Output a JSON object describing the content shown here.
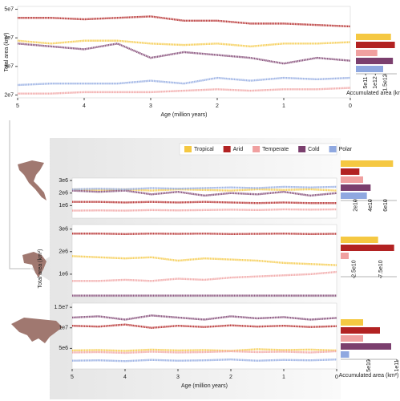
{
  "chart_data": [
    {
      "type": "line",
      "x_label": "Age (million years)",
      "y_label": "Total area (km²)",
      "x": [
        5,
        4.5,
        4,
        3.5,
        3,
        2.5,
        2,
        1.5,
        1,
        0.5,
        0
      ],
      "xlim": [
        5,
        0
      ],
      "xticks": [
        5,
        4,
        3,
        2,
        1,
        0
      ],
      "ylim": [
        19000000,
        51000000
      ],
      "yticks": [
        {
          "value": 20000000,
          "label": "2e7"
        },
        {
          "value": 30000000,
          "label": "3e7"
        },
        {
          "value": 40000000,
          "label": "4e7"
        },
        {
          "value": 50000000,
          "label": "5e7"
        }
      ],
      "series": [
        {
          "color": "#b22222",
          "values": [
            47000000,
            47000000,
            46500000,
            47000000,
            47500000,
            46000000,
            46000000,
            45000000,
            45000000,
            44500000,
            44000000
          ]
        },
        {
          "color": "#f5c842",
          "values": [
            39000000,
            38000000,
            39000000,
            39000000,
            38000000,
            37500000,
            38000000,
            37000000,
            38000000,
            38000000,
            38500000
          ]
        },
        {
          "color": "#7b3f6e",
          "values": [
            38000000,
            37000000,
            36000000,
            38000000,
            33000000,
            35000000,
            34000000,
            33000000,
            31000000,
            33000000,
            32000000
          ]
        },
        {
          "color": "#8fa8e0",
          "values": [
            23500000,
            24000000,
            24000000,
            24000000,
            25000000,
            24000000,
            26000000,
            25000000,
            26000000,
            25500000,
            26000000
          ]
        },
        {
          "color": "#f0a0a0",
          "values": [
            20500000,
            20500000,
            21000000,
            21000000,
            21000000,
            21500000,
            22000000,
            21500000,
            22000000,
            22000000,
            22500000
          ]
        }
      ]
    },
    {
      "type": "bar",
      "x_label": "Accumulated area (km²)",
      "values": [
        1800000000000,
        2000000000000,
        1100000000000,
        1900000000000,
        1400000000000
      ],
      "colors": [
        "#f5c842",
        "#b22222",
        "#f0a0a0",
        "#7b3f6e",
        "#8fa8e0"
      ],
      "xlim": [
        0,
        2100000000000
      ],
      "xticks": [
        {
          "value": 500000000000,
          "label": "5e11"
        },
        {
          "value": 1000000000000,
          "label": "1e12"
        },
        {
          "value": 1500000000000,
          "label": "1.5e12"
        }
      ]
    },
    {
      "type": "line",
      "x": [
        5,
        4.5,
        4,
        3.5,
        3,
        2.5,
        2,
        1.5,
        1,
        0.5,
        0
      ],
      "xlim": [
        5,
        0
      ],
      "ylim": [
        0,
        3200000
      ],
      "yticks": [
        {
          "value": 1000000,
          "label": "1e6"
        },
        {
          "value": 2000000,
          "label": "2e6"
        },
        {
          "value": 3000000,
          "label": "3e6"
        }
      ],
      "series": [
        {
          "name": "Tropical",
          "color": "#f5c842",
          "values": [
            2300000,
            2250000,
            2300000,
            2200000,
            2300000,
            2250000,
            2200000,
            2300000,
            2250000,
            2300000,
            2200000
          ]
        },
        {
          "name": "Arid",
          "color": "#b22222",
          "values": [
            1300000,
            1300000,
            1250000,
            1300000,
            1250000,
            1300000,
            1250000,
            1200000,
            1250000,
            1200000,
            1200000
          ]
        },
        {
          "name": "Temperate",
          "color": "#f0a0a0",
          "values": [
            600000,
            620000,
            600000,
            650000,
            620000,
            650000,
            680000,
            650000,
            700000,
            680000,
            700000
          ]
        },
        {
          "name": "Cold",
          "color": "#7b3f6e",
          "values": [
            2200000,
            2100000,
            2200000,
            1900000,
            2100000,
            1800000,
            2000000,
            1900000,
            2100000,
            1800000,
            2000000
          ]
        },
        {
          "name": "Polar",
          "color": "#8fa8e0",
          "values": [
            2300000,
            2350000,
            2300000,
            2400000,
            2350000,
            2400000,
            2450000,
            2400000,
            2500000,
            2450000,
            2500000
          ]
        }
      ]
    },
    {
      "type": "bar",
      "values": [
        70000000000,
        25000000000,
        30000000000,
        40000000000,
        35000000000
      ],
      "colors": [
        "#f5c842",
        "#b22222",
        "#f0a0a0",
        "#7b3f6e",
        "#8fa8e0"
      ],
      "xlim": [
        0,
        75000000000
      ],
      "xticks": [
        {
          "value": 20000000000,
          "label": "2e10"
        },
        {
          "value": 40000000000,
          "label": "4e10"
        },
        {
          "value": 60000000000,
          "label": "6e10"
        }
      ]
    },
    {
      "type": "line",
      "y_label": "Total area (km²)",
      "x": [
        5,
        4.5,
        4,
        3.5,
        3,
        2.5,
        2,
        1.5,
        1,
        0.5,
        0
      ],
      "xlim": [
        5,
        0
      ],
      "ylim": [
        0,
        3200000
      ],
      "yticks": [
        {
          "value": 1000000,
          "label": "1e6"
        },
        {
          "value": 2000000,
          "label": "2e6"
        },
        {
          "value": 3000000,
          "label": "3e6"
        }
      ],
      "series": [
        {
          "color": "#b22222",
          "values": [
            2800000,
            2800000,
            2780000,
            2800000,
            2790000,
            2800000,
            2780000,
            2790000,
            2800000,
            2780000,
            2790000
          ]
        },
        {
          "color": "#f5c842",
          "values": [
            1800000,
            1750000,
            1700000,
            1750000,
            1600000,
            1700000,
            1650000,
            1600000,
            1500000,
            1450000,
            1400000
          ]
        },
        {
          "color": "#f0a0a0",
          "values": [
            700000,
            700000,
            750000,
            700000,
            800000,
            750000,
            850000,
            900000,
            950000,
            1000000,
            1100000
          ]
        },
        {
          "color": "#7b3f6e",
          "values": [
            50000,
            50000,
            50000,
            50000,
            50000,
            50000,
            50000,
            50000,
            50000,
            50000,
            50000
          ]
        }
      ]
    },
    {
      "type": "bar",
      "values": [
        70000000000,
        100000000000,
        15000000000
      ],
      "colors": [
        "#f5c842",
        "#b22222",
        "#f0a0a0"
      ],
      "xlim": [
        0,
        105000000000
      ],
      "xticks": [
        {
          "value": 25000000000,
          "label": "2.5e10"
        },
        {
          "value": 75000000000,
          "label": "7.5e10"
        }
      ]
    },
    {
      "type": "line",
      "x_label": "Age (million years)",
      "x": [
        5,
        4.5,
        4,
        3.5,
        3,
        2.5,
        2,
        1.5,
        1,
        0.5,
        0
      ],
      "xlim": [
        5,
        0
      ],
      "xticks": [
        5,
        4,
        3,
        2,
        1,
        0
      ],
      "ylim": [
        0,
        16000000
      ],
      "yticks": [
        {
          "value": 5000000,
          "label": "5e6"
        },
        {
          "value": 10000000,
          "label": "1e7"
        },
        {
          "value": 15000000,
          "label": "1.5e7"
        }
      ],
      "series": [
        {
          "color": "#7b3f6e",
          "values": [
            12500000,
            12800000,
            12000000,
            13000000,
            12500000,
            12000000,
            12800000,
            12300000,
            12600000,
            12000000,
            12400000
          ]
        },
        {
          "color": "#b22222",
          "values": [
            10500000,
            10300000,
            10800000,
            10000000,
            10500000,
            10200000,
            10600000,
            10300000,
            10500000,
            10200000,
            10400000
          ]
        },
        {
          "color": "#f5c842",
          "values": [
            4500000,
            4600000,
            4400000,
            4700000,
            4500000,
            4600000,
            4400000,
            4800000,
            4600000,
            4700000,
            4500000
          ]
        },
        {
          "color": "#f0a0a0",
          "values": [
            4000000,
            4100000,
            3900000,
            4200000,
            4000000,
            4100000,
            4300000,
            4100000,
            4200000,
            4000000,
            4300000
          ]
        },
        {
          "color": "#8fa8e0",
          "values": [
            2000000,
            2100000,
            1900000,
            2200000,
            2000000,
            2100000,
            2300000,
            2000000,
            2200000,
            2100000,
            2300000
          ]
        }
      ]
    },
    {
      "type": "bar",
      "x_label": "Accumulated area (km²)",
      "values": [
        40000000000,
        70000000000,
        40000000000,
        90000000000,
        15000000000
      ],
      "colors": [
        "#f5c842",
        "#b22222",
        "#f0a0a0",
        "#7b3f6e",
        "#8fa8e0"
      ],
      "xlim": [
        0,
        100000000000
      ],
      "xticks": [
        {
          "value": 50000000000,
          "label": "5e10"
        },
        {
          "value": 100000000000,
          "label": "1e11"
        }
      ]
    }
  ]
}
